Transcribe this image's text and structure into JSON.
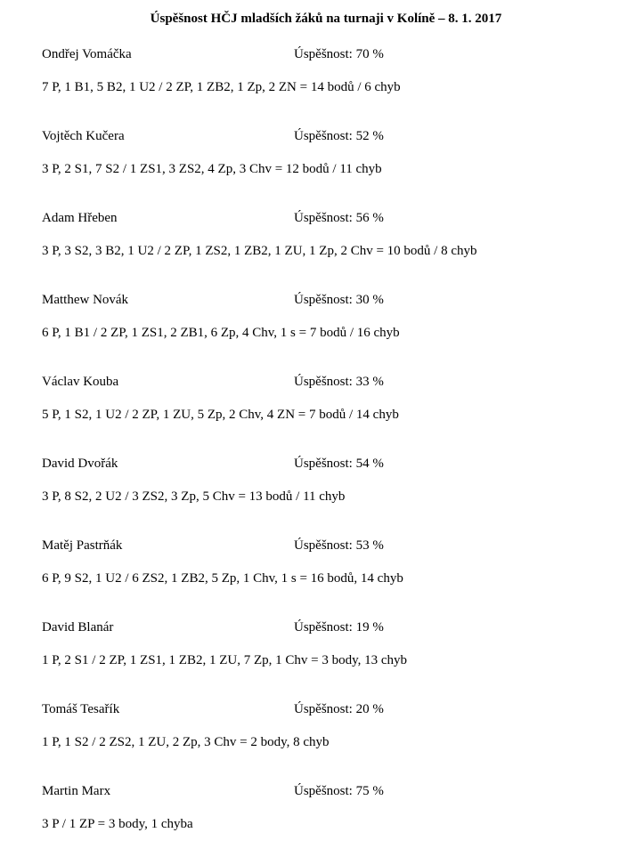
{
  "title": "Úspěšnost HČJ mladších žáků na turnaji v Kolíně – 8. 1. 2017",
  "entries": [
    {
      "name": "Ondřej Vomáčka",
      "rate": "Úspěšnost: 70 %",
      "detail": "7 P, 1 B1, 5 B2, 1 U2 / 2 ZP, 1 ZB2, 1 Zp, 2 ZN = 14 bodů / 6 chyb"
    },
    {
      "name": "Vojtěch Kučera",
      "rate": "Úspěšnost: 52 %",
      "detail": "3 P, 2 S1, 7 S2 / 1 ZS1, 3 ZS2, 4 Zp, 3 Chv  = 12 bodů / 11 chyb"
    },
    {
      "name": "Adam Hřeben",
      "rate": "Úspěšnost: 56 %",
      "detail": "3 P, 3 S2, 3 B2, 1 U2 / 2 ZP, 1 ZS2, 1 ZB2, 1 ZU, 1 Zp, 2 Chv = 10 bodů / 8 chyb"
    },
    {
      "name": "Matthew Novák",
      "rate": "Úspěšnost: 30 %",
      "detail": "6 P, 1 B1 / 2 ZP, 1 ZS1, 2 ZB1, 6 Zp, 4 Chv, 1 s = 7 bodů / 16 chyb"
    },
    {
      "name": "Václav Kouba",
      "rate": "Úspěšnost: 33 %",
      "detail": "5 P, 1 S2, 1 U2 / 2 ZP, 1 ZU, 5 Zp, 2 Chv, 4 ZN = 7 bodů / 14 chyb"
    },
    {
      "name": "David Dvořák",
      "rate": "Úspěšnost: 54 %",
      "detail": "3 P, 8 S2, 2 U2 / 3 ZS2, 3 Zp, 5 Chv = 13 bodů / 11 chyb"
    },
    {
      "name": "Matěj Pastrňák",
      "rate": "Úspěšnost: 53 %",
      "detail": "6 P, 9 S2, 1 U2 / 6 ZS2, 1 ZB2, 5 Zp, 1 Chv, 1 s = 16 bodů, 14 chyb"
    },
    {
      "name": "David Blanár",
      "rate": "Úspěšnost: 19 %",
      "detail": "1 P, 2 S1 / 2 ZP, 1 ZS1, 1 ZB2, 1 ZU, 7 Zp, 1 Chv = 3 body, 13 chyb"
    },
    {
      "name": "Tomáš Tesařík",
      "rate": "Úspěšnost: 20 %",
      "detail": "1 P, 1 S2 / 2 ZS2, 1 ZU, 2 Zp, 3 Chv = 2 body, 8 chyb"
    },
    {
      "name": "Martin Marx",
      "rate": "Úspěšnost: 75 %",
      "detail": "3 P / 1 ZP = 3 body, 1 chyba"
    }
  ]
}
